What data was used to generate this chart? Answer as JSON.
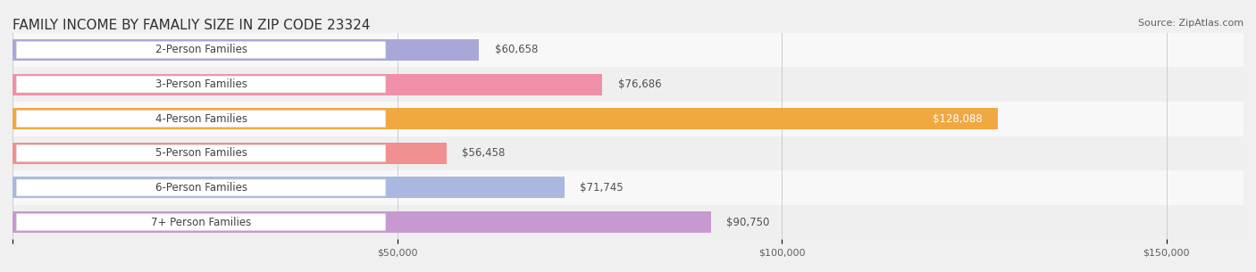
{
  "title": "FAMILY INCOME BY FAMALIY SIZE IN ZIP CODE 23324",
  "source": "Source: ZipAtlas.com",
  "categories": [
    "2-Person Families",
    "3-Person Families",
    "4-Person Families",
    "5-Person Families",
    "6-Person Families",
    "7+ Person Families"
  ],
  "values": [
    60658,
    76686,
    128088,
    56458,
    71745,
    90750
  ],
  "bar_colors": [
    "#a8a8d8",
    "#f090a8",
    "#f0a840",
    "#f09090",
    "#a8b8e0",
    "#c898d0"
  ],
  "label_colors": [
    "#606060",
    "#606060",
    "#ffffff",
    "#606060",
    "#606060",
    "#606060"
  ],
  "value_labels": [
    "$60,658",
    "$76,686",
    "$128,088",
    "$56,458",
    "$71,745",
    "$90,750"
  ],
  "bg_row_colors": [
    "#f5f5f5",
    "#ececec"
  ],
  "xmax": 160000,
  "xticks": [
    0,
    50000,
    100000,
    150000
  ],
  "xtick_labels": [
    "$50,000",
    "$100,000",
    "$150,000"
  ],
  "title_fontsize": 11,
  "bar_label_fontsize": 8.5,
  "value_fontsize": 8.5,
  "source_fontsize": 8,
  "background_color": "#f0f0f0"
}
